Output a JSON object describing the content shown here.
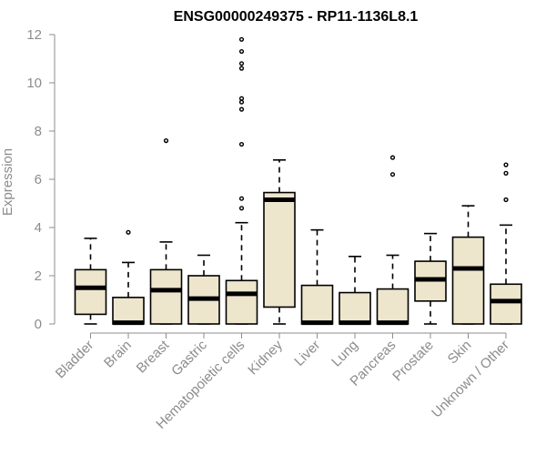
{
  "chart_data": {
    "type": "boxplot",
    "title": "ENSG00000249375 - RP11-1136L8.1",
    "xlabel": "",
    "ylabel": "Expression",
    "ylim": [
      0,
      12
    ],
    "yticks": [
      0,
      2,
      4,
      6,
      8,
      10,
      12
    ],
    "categories": [
      "Bladder",
      "Brain",
      "Breast",
      "Gastric",
      "Hematopoietic cells",
      "Kidney",
      "Liver",
      "Lung",
      "Pancreas",
      "Prostate",
      "Skin",
      "Unknown / Other"
    ],
    "boxes": [
      {
        "category": "Bladder",
        "whisker_low": 0.0,
        "q1": 0.4,
        "median": 1.5,
        "q3": 2.25,
        "whisker_high": 3.55,
        "outliers": []
      },
      {
        "category": "Brain",
        "whisker_low": 0.0,
        "q1": 0.0,
        "median": 0.05,
        "q3": 1.1,
        "whisker_high": 2.55,
        "outliers": [
          3.8
        ]
      },
      {
        "category": "Breast",
        "whisker_low": 0.0,
        "q1": 0.0,
        "median": 1.4,
        "q3": 2.25,
        "whisker_high": 3.4,
        "outliers": [
          7.6
        ]
      },
      {
        "category": "Gastric",
        "whisker_low": 0.0,
        "q1": 0.0,
        "median": 1.05,
        "q3": 2.0,
        "whisker_high": 2.85,
        "outliers": []
      },
      {
        "category": "Hematopoietic cells",
        "whisker_low": 0.0,
        "q1": 0.0,
        "median": 1.25,
        "q3": 1.8,
        "whisker_high": 4.2,
        "outliers": [
          4.8,
          5.2,
          7.45,
          8.9,
          9.2,
          9.35,
          10.6,
          10.8,
          11.3,
          11.8
        ]
      },
      {
        "category": "Kidney",
        "whisker_low": 0.0,
        "q1": 0.7,
        "median": 5.15,
        "q3": 5.45,
        "whisker_high": 6.8,
        "outliers": []
      },
      {
        "category": "Liver",
        "whisker_low": 0.0,
        "q1": 0.0,
        "median": 0.05,
        "q3": 1.6,
        "whisker_high": 3.9,
        "outliers": []
      },
      {
        "category": "Lung",
        "whisker_low": 0.0,
        "q1": 0.0,
        "median": 0.05,
        "q3": 1.3,
        "whisker_high": 2.8,
        "outliers": []
      },
      {
        "category": "Pancreas",
        "whisker_low": 0.0,
        "q1": 0.0,
        "median": 0.05,
        "q3": 1.45,
        "whisker_high": 2.85,
        "outliers": [
          6.2,
          6.9
        ]
      },
      {
        "category": "Prostate",
        "whisker_low": 0.0,
        "q1": 0.95,
        "median": 1.85,
        "q3": 2.6,
        "whisker_high": 3.75,
        "outliers": []
      },
      {
        "category": "Skin",
        "whisker_low": 0.0,
        "q1": 0.0,
        "median": 2.3,
        "q3": 3.6,
        "whisker_high": 4.9,
        "outliers": []
      },
      {
        "category": "Unknown / Other",
        "whisker_low": 0.0,
        "q1": 0.0,
        "median": 0.95,
        "q3": 1.65,
        "whisker_high": 4.1,
        "outliers": [
          5.15,
          6.25,
          6.6
        ]
      }
    ],
    "grid": false,
    "colors": {
      "box_fill": "#ede6cd",
      "box_stroke": "#000000",
      "axis": "#8c8c8c"
    }
  }
}
